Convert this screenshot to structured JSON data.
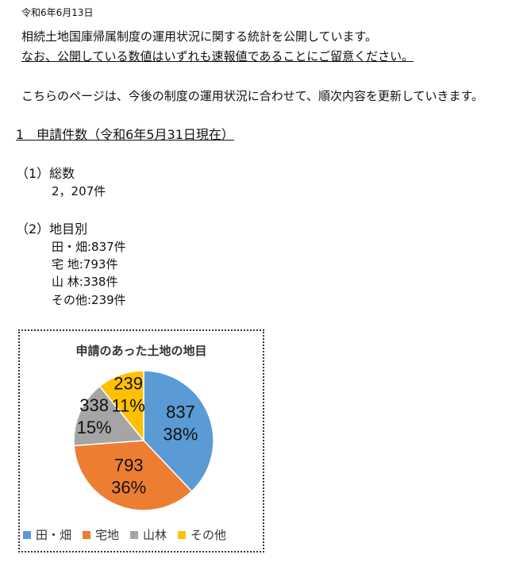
{
  "date": "令和6年6月13日",
  "intro": {
    "line1": "相続土地国庫帰属制度の運用状況に関する統計を公開しています。",
    "line2": "なお、公開している数値はいずれも速報値であることにご留意ください。",
    "line3": "こちらのページは、今後の制度の運用状況に合わせて、順次内容を更新していきます。"
  },
  "section1": {
    "heading": "1　申請件数（令和6年5月31日現在）",
    "total_heading": "（1）総数",
    "total_value": "2，207件",
    "breakdown_heading": "（2）地目別",
    "items": [
      "田・畑:837件",
      "宅 地:793件",
      "山 林:338件",
      "その他:239件"
    ]
  },
  "chart_data": {
    "type": "pie",
    "title": "申請のあった土地の地目",
    "categories": [
      "田・畑",
      "宅地",
      "山林",
      "その他"
    ],
    "values": [
      837,
      793,
      338,
      239
    ],
    "percent_labels": [
      "38%",
      "36%",
      "15%",
      "11%"
    ],
    "colors": [
      "#5B9BD5",
      "#ED7D31",
      "#A5A5A5",
      "#FFC000"
    ],
    "legend": "bottom"
  }
}
